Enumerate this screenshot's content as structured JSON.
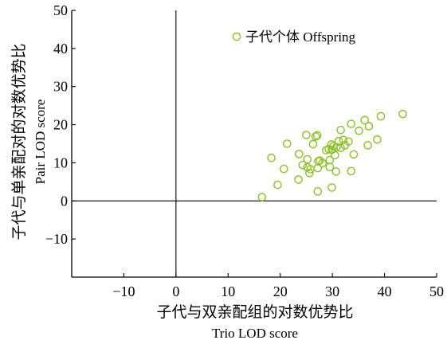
{
  "chart_data": {
    "type": "scatter",
    "xlabel_cn": "子代与双亲配组的对数优势比",
    "xlabel_en": "Trio LOD score",
    "ylabel_cn": "子代与单亲配对的对数优势比",
    "ylabel_en": "Pair LOD score",
    "xlim": [
      -20,
      50
    ],
    "ylim": [
      -20,
      50
    ],
    "xticks": [
      -10,
      0,
      10,
      20,
      30,
      40,
      50
    ],
    "yticks": [
      -10,
      0,
      10,
      20,
      30,
      40,
      50
    ],
    "legend_position": "top-right",
    "series": [
      {
        "name": "子代个体 Offspring",
        "color": "#8cbf26",
        "marker": "open-circle",
        "points": [
          [
            16.5,
            1.0
          ],
          [
            19.5,
            4.2
          ],
          [
            18.3,
            11.3
          ],
          [
            20.7,
            8.4
          ],
          [
            21.3,
            15.0
          ],
          [
            23.5,
            5.6
          ],
          [
            23.6,
            12.3
          ],
          [
            24.3,
            9.4
          ],
          [
            25.0,
            17.3
          ],
          [
            25.2,
            10.9
          ],
          [
            25.2,
            8.8
          ],
          [
            25.6,
            7.3
          ],
          [
            25.8,
            8.3
          ],
          [
            26.3,
            14.9
          ],
          [
            26.8,
            16.9
          ],
          [
            27.1,
            17.2
          ],
          [
            27.2,
            8.6
          ],
          [
            27.3,
            10.4
          ],
          [
            27.2,
            2.5
          ],
          [
            27.6,
            10.6
          ],
          [
            28.1,
            9.9
          ],
          [
            28.8,
            13.3
          ],
          [
            29.3,
            13.6
          ],
          [
            29.5,
            8.9
          ],
          [
            29.5,
            10.7
          ],
          [
            29.8,
            14.8
          ],
          [
            29.9,
            3.5
          ],
          [
            29.9,
            13.4
          ],
          [
            30.2,
            14.4
          ],
          [
            30.5,
            12.0
          ],
          [
            30.7,
            7.7
          ],
          [
            30.8,
            14.1
          ],
          [
            31.2,
            15.7
          ],
          [
            31.6,
            18.6
          ],
          [
            31.6,
            13.9
          ],
          [
            32.1,
            16.0
          ],
          [
            32.4,
            14.6
          ],
          [
            33.1,
            15.6
          ],
          [
            33.6,
            20.2
          ],
          [
            33.6,
            7.8
          ],
          [
            34.1,
            12.2
          ],
          [
            35.1,
            18.4
          ],
          [
            36.2,
            21.2
          ],
          [
            36.8,
            14.6
          ],
          [
            37.0,
            19.6
          ],
          [
            38.6,
            16.1
          ],
          [
            39.3,
            22.2
          ],
          [
            43.5,
            22.8
          ]
        ]
      }
    ]
  }
}
